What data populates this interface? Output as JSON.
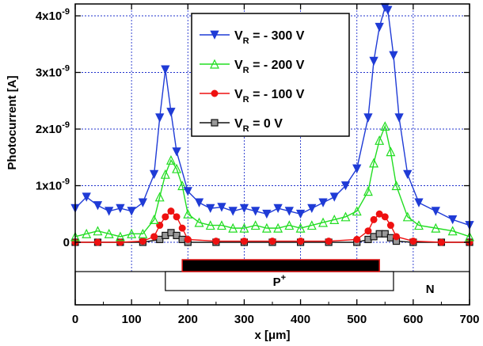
{
  "chart_data": {
    "type": "line",
    "xlabel": "x [μm]",
    "ylabel": "Photocurrent [A]",
    "xlim": [
      0,
      700
    ],
    "ylim": [
      -1e-10,
      4.2e-09
    ],
    "x_ticks": [
      0,
      100,
      200,
      300,
      400,
      500,
      600,
      700
    ],
    "x_tick_labels": [
      "0",
      "100",
      "200",
      "300",
      "400",
      "500",
      "600",
      "700"
    ],
    "y_ticks": [
      0,
      1e-09,
      2e-09,
      3e-09,
      4e-09
    ],
    "y_tick_labels": [
      {
        "base": "0",
        "exp": ""
      },
      {
        "base": "1x10",
        "exp": "-9"
      },
      {
        "base": "2x10",
        "exp": "-9"
      },
      {
        "base": "3x10",
        "exp": "-9"
      },
      {
        "base": "4x10",
        "exp": "-9"
      }
    ],
    "grid": true,
    "legend_position": "top-center",
    "series": [
      {
        "name": "V_R = - 300 V",
        "label_main": "V",
        "label_sub": "R",
        "label_rest": " = - 300 V",
        "color": "#1f3bd6",
        "marker": "triangle-down",
        "x": [
          0,
          20,
          40,
          60,
          80,
          100,
          120,
          140,
          150,
          160,
          170,
          180,
          200,
          220,
          240,
          260,
          280,
          300,
          320,
          340,
          360,
          380,
          400,
          420,
          440,
          460,
          480,
          500,
          520,
          530,
          540,
          550,
          555,
          565,
          575,
          590,
          610,
          640,
          670,
          700
        ],
        "y": [
          6e-10,
          8e-10,
          6.5e-10,
          5.5e-10,
          6e-10,
          5.5e-10,
          7e-10,
          1.2e-09,
          2.2e-09,
          3.05e-09,
          2.3e-09,
          1.6e-09,
          9e-10,
          7e-10,
          6e-10,
          6.2e-10,
          5.5e-10,
          6e-10,
          5.5e-10,
          5e-10,
          6e-10,
          5.5e-10,
          5e-10,
          6e-10,
          7e-10,
          8e-10,
          1e-09,
          1.3e-09,
          2.2e-09,
          3.2e-09,
          3.8e-09,
          4.15e-09,
          4.1e-09,
          3.3e-09,
          2.2e-09,
          1.2e-09,
          7e-10,
          5.5e-10,
          4e-10,
          3e-10
        ]
      },
      {
        "name": "V_R = - 200 V",
        "label_main": "V",
        "label_sub": "R",
        "label_rest": " = - 200 V",
        "color": "#22dd22",
        "marker": "triangle-up",
        "x": [
          0,
          20,
          40,
          60,
          80,
          100,
          120,
          140,
          150,
          160,
          170,
          180,
          190,
          200,
          220,
          240,
          260,
          280,
          300,
          320,
          340,
          360,
          380,
          400,
          420,
          440,
          460,
          480,
          500,
          520,
          530,
          540,
          550,
          560,
          570,
          590,
          610,
          640,
          670,
          700
        ],
        "y": [
          1e-10,
          1.5e-10,
          2e-10,
          1.5e-10,
          1e-10,
          1.5e-10,
          1.5e-10,
          4e-10,
          8e-10,
          1.2e-09,
          1.45e-09,
          1.3e-09,
          1e-09,
          5e-10,
          3.5e-10,
          3e-10,
          3e-10,
          2.5e-10,
          2.5e-10,
          3e-10,
          2.5e-10,
          2.5e-10,
          3e-10,
          2.5e-10,
          3e-10,
          3.5e-10,
          4e-10,
          4.5e-10,
          5.5e-10,
          9e-10,
          1.4e-09,
          1.8e-09,
          2.05e-09,
          1.6e-09,
          1e-09,
          4.5e-10,
          3e-10,
          2.5e-10,
          2e-10,
          1e-10
        ]
      },
      {
        "name": "V_R = - 100 V",
        "label_main": "V",
        "label_sub": "R",
        "label_rest": " = - 100 V",
        "color": "#ee1111",
        "marker": "circle",
        "x": [
          0,
          40,
          80,
          120,
          140,
          150,
          160,
          170,
          180,
          190,
          200,
          250,
          300,
          350,
          400,
          450,
          500,
          520,
          530,
          540,
          550,
          560,
          570,
          600,
          650,
          700
        ],
        "y": [
          0,
          0,
          0,
          2e-11,
          1e-10,
          3e-10,
          4.5e-10,
          5.5e-10,
          4.5e-10,
          2.5e-10,
          5e-11,
          2e-11,
          2e-11,
          2e-11,
          2e-11,
          2e-11,
          5e-11,
          2e-10,
          4e-10,
          5e-10,
          4.5e-10,
          3e-10,
          1e-10,
          2e-11,
          0,
          0
        ]
      },
      {
        "name": "V_R = 0 V",
        "label_main": "V",
        "label_sub": "R",
        "label_rest": " = 0 V",
        "color": "#111111",
        "marker": "square",
        "x": [
          0,
          40,
          80,
          120,
          150,
          160,
          170,
          180,
          190,
          200,
          250,
          300,
          350,
          400,
          450,
          500,
          520,
          530,
          540,
          550,
          560,
          570,
          600,
          650,
          700
        ],
        "y": [
          0,
          0,
          0,
          0,
          5e-11,
          1.2e-10,
          1.7e-10,
          1.2e-10,
          5e-11,
          0,
          0,
          0,
          0,
          0,
          0,
          0,
          5e-11,
          1e-10,
          1.5e-10,
          1.5e-10,
          8e-11,
          2e-11,
          0,
          0,
          0
        ]
      }
    ],
    "structure": {
      "metal_range": [
        190,
        540
      ],
      "metal_fill": "#000000",
      "metal_border": "#dd1111",
      "p_range": [
        160,
        565
      ],
      "p_label": "P",
      "p_sup": "+",
      "n_label": "N"
    }
  }
}
